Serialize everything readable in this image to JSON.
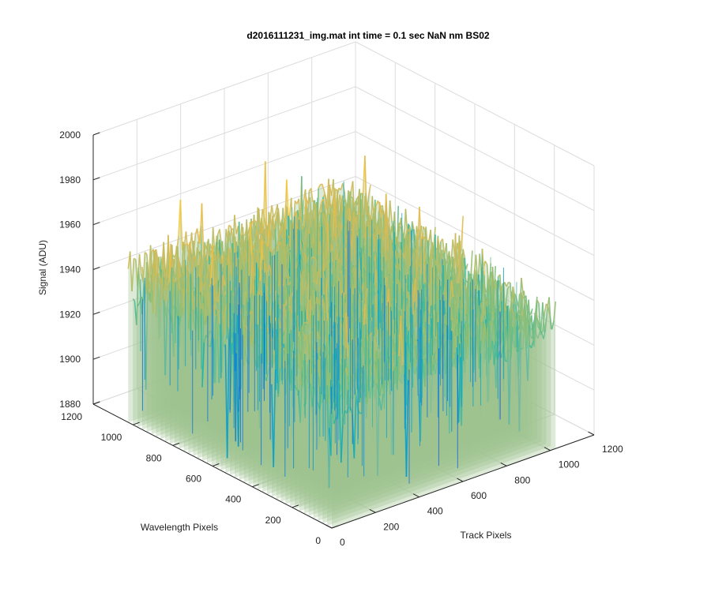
{
  "chart_data": {
    "type": "surface",
    "title": "d2016111231_img.mat int time = 0.1 sec  NaN nm BS02",
    "xlabel": "Track Pixels",
    "ylabel": "Wavelength Pixels",
    "zlabel": "Signal (ADU)",
    "xlim": [
      0,
      1200
    ],
    "ylim": [
      0,
      1200
    ],
    "zlim": [
      1880,
      2000
    ],
    "x_ticks": [
      "0",
      "200",
      "400",
      "600",
      "800",
      "1000",
      "1200"
    ],
    "y_ticks": [
      "0",
      "200",
      "400",
      "600",
      "800",
      "1000",
      "1200"
    ],
    "z_ticks": [
      "1880",
      "1900",
      "1920",
      "1940",
      "1960",
      "1980",
      "2000"
    ],
    "grid": true,
    "colormap": "parula",
    "surface_extent": {
      "x": [
        0,
        1024
      ],
      "y": [
        0,
        1024
      ]
    },
    "typical_signal_range": [
      1915,
      1965
    ],
    "peak_signal": 1985,
    "min_signal": 1885
  }
}
